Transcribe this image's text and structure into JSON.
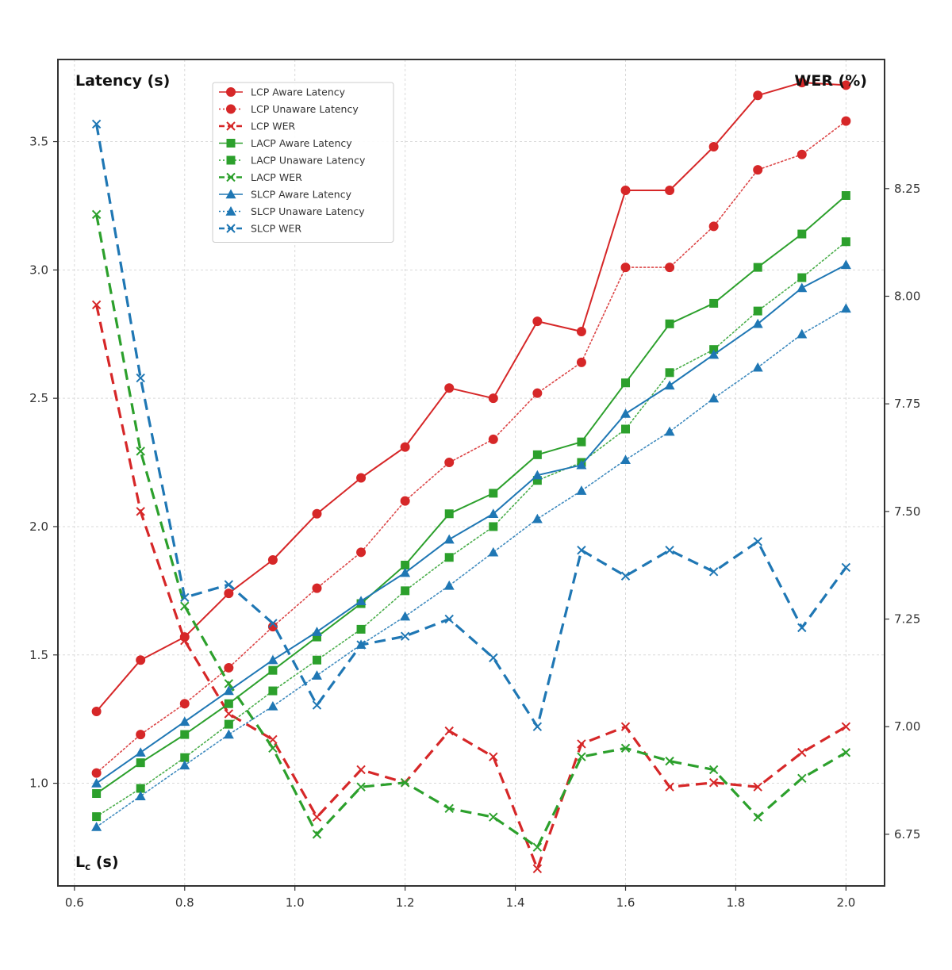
{
  "chart_data": {
    "type": "line",
    "title": "",
    "xlabel_main": "L",
    "xlabel_sub": "c",
    "xlabel_unit": " (s)",
    "ylabel_left": "Latency (s)",
    "ylabel_right": "WER (%)",
    "xlim": [
      0.57,
      2.07
    ],
    "ylim_left": [
      0.6,
      3.82
    ],
    "ylim_right": [
      6.63,
      8.55
    ],
    "x_ticks": [
      0.6,
      0.8,
      1.0,
      1.2,
      1.4,
      1.6,
      1.8,
      2.0
    ],
    "y_left_ticks": [
      1.0,
      1.5,
      2.0,
      2.5,
      3.0,
      3.5
    ],
    "y_right_ticks": [
      6.75,
      7.0,
      7.25,
      7.5,
      7.75,
      8.0,
      8.25
    ],
    "grid": true,
    "legend_position": "upper-left",
    "x": [
      0.64,
      0.72,
      0.8,
      0.88,
      0.96,
      1.04,
      1.12,
      1.2,
      1.28,
      1.36,
      1.44,
      1.52,
      1.6,
      1.68,
      1.76,
      1.84,
      1.92,
      2.0
    ],
    "series": [
      {
        "name": "LCP Aware Latency",
        "axis": "left",
        "color": "#d62728",
        "style": "solid",
        "marker": "circle",
        "values": [
          1.28,
          1.48,
          1.57,
          1.74,
          1.87,
          2.05,
          2.19,
          2.31,
          2.54,
          2.5,
          2.8,
          2.76,
          3.31,
          3.31,
          3.48,
          3.68,
          3.73,
          3.72
        ]
      },
      {
        "name": "LCP Unaware Latency",
        "axis": "left",
        "color": "#d62728",
        "style": "dotted",
        "marker": "circle",
        "values": [
          1.04,
          1.19,
          1.31,
          1.45,
          1.61,
          1.76,
          1.9,
          2.1,
          2.25,
          2.34,
          2.52,
          2.64,
          3.01,
          3.01,
          3.17,
          3.39,
          3.45,
          3.58
        ]
      },
      {
        "name": "LCP WER",
        "axis": "right",
        "color": "#d62728",
        "style": "dashed",
        "marker": "x",
        "values": [
          7.98,
          7.5,
          7.2,
          7.03,
          6.97,
          6.79,
          6.9,
          6.87,
          6.99,
          6.93,
          6.67,
          6.96,
          7.0,
          6.86,
          6.87,
          6.86,
          6.94,
          7.0
        ]
      },
      {
        "name": "LACP Aware Latency",
        "axis": "left",
        "color": "#2ca02c",
        "style": "solid",
        "marker": "square",
        "values": [
          0.96,
          1.08,
          1.19,
          1.31,
          1.44,
          1.57,
          1.7,
          1.85,
          2.05,
          2.13,
          2.28,
          2.33,
          2.56,
          2.79,
          2.87,
          3.01,
          3.14,
          3.29
        ]
      },
      {
        "name": "LACP Unaware Latency",
        "axis": "left",
        "color": "#2ca02c",
        "style": "dotted",
        "marker": "square",
        "values": [
          0.87,
          0.98,
          1.1,
          1.23,
          1.36,
          1.48,
          1.6,
          1.75,
          1.88,
          2.0,
          2.18,
          2.25,
          2.38,
          2.6,
          2.69,
          2.84,
          2.97,
          3.11
        ]
      },
      {
        "name": "LACP WER",
        "axis": "right",
        "color": "#2ca02c",
        "style": "dashed",
        "marker": "x",
        "values": [
          8.19,
          7.64,
          7.28,
          7.1,
          6.95,
          6.75,
          6.86,
          6.87,
          6.81,
          6.79,
          6.72,
          6.93,
          6.95,
          6.92,
          6.9,
          6.79,
          6.88,
          6.94
        ]
      },
      {
        "name": "SLCP Aware Latency",
        "axis": "left",
        "color": "#1f77b4",
        "style": "solid",
        "marker": "triangle",
        "values": [
          1.0,
          1.12,
          1.24,
          1.36,
          1.48,
          1.59,
          1.71,
          1.82,
          1.95,
          2.05,
          2.2,
          2.24,
          2.44,
          2.55,
          2.67,
          2.79,
          2.93,
          3.02
        ]
      },
      {
        "name": "SLCP Unaware Latency",
        "axis": "left",
        "color": "#1f77b4",
        "style": "dotted",
        "marker": "triangle",
        "values": [
          0.83,
          0.95,
          1.07,
          1.19,
          1.3,
          1.42,
          1.54,
          1.65,
          1.77,
          1.9,
          2.03,
          2.14,
          2.26,
          2.37,
          2.5,
          2.62,
          2.75,
          2.85
        ]
      },
      {
        "name": "SLCP WER",
        "axis": "right",
        "color": "#1f77b4",
        "style": "dashed",
        "marker": "x",
        "values": [
          8.4,
          7.81,
          7.3,
          7.33,
          7.24,
          7.05,
          7.19,
          7.21,
          7.25,
          7.16,
          7.0,
          7.41,
          7.35,
          7.41,
          7.36,
          7.43,
          7.23,
          7.37
        ]
      }
    ]
  }
}
